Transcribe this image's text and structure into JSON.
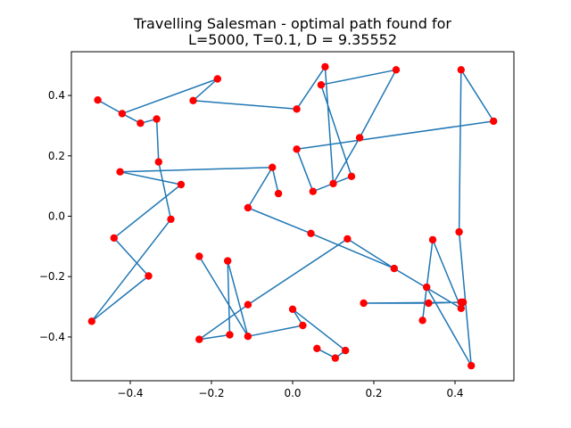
{
  "chart_data": {
    "type": "scatter",
    "title_lines": [
      "Travelling Salesman - optimal path found for",
      "L=5000, T=0.1, D = 9.35552"
    ],
    "xlim": [
      -0.545,
      0.545
    ],
    "ylim": [
      -0.545,
      0.545
    ],
    "xticks": [
      -0.4,
      -0.2,
      0.0,
      0.2,
      0.4
    ],
    "yticks": [
      -0.4,
      -0.2,
      0.0,
      0.2,
      0.4
    ],
    "xtick_labels": [
      "−0.4",
      "−0.2",
      "0.0",
      "0.2",
      "0.4"
    ],
    "ytick_labels": [
      "−0.4",
      "−0.2",
      "0.0",
      "0.2",
      "0.4"
    ],
    "grid": false,
    "path_color": "#1f77b4",
    "point_color": "#ff0000",
    "path": [
      [
        -0.48,
        0.385
      ],
      [
        -0.42,
        0.34
      ],
      [
        -0.185,
        0.455
      ],
      [
        -0.245,
        0.383
      ],
      [
        0.01,
        0.355
      ],
      [
        0.08,
        0.495
      ],
      [
        0.1,
        0.108
      ],
      [
        0.165,
        0.26
      ],
      [
        0.255,
        0.485
      ],
      [
        0.07,
        0.435
      ],
      [
        0.145,
        0.132
      ],
      [
        0.05,
        0.082
      ],
      [
        0.01,
        0.222
      ],
      [
        0.495,
        0.315
      ],
      [
        0.415,
        0.485
      ],
      [
        0.41,
        -0.052
      ],
      [
        0.44,
        -0.495
      ],
      [
        0.33,
        -0.235
      ],
      [
        0.32,
        -0.345
      ],
      [
        0.345,
        -0.078
      ],
      [
        0.415,
        -0.305
      ],
      [
        0.42,
        -0.285
      ],
      [
        0.175,
        -0.288
      ],
      [
        0.335,
        -0.288
      ],
      [
        0.415,
        -0.285
      ],
      [
        0.415,
        -0.305
      ],
      [
        0.25,
        -0.173
      ],
      [
        0.045,
        -0.057
      ],
      [
        -0.11,
        0.028
      ],
      [
        -0.05,
        0.162
      ],
      [
        -0.035,
        0.075
      ],
      [
        -0.05,
        0.162
      ],
      [
        -0.425,
        0.147
      ],
      [
        -0.275,
        0.105
      ],
      [
        -0.44,
        -0.072
      ],
      [
        -0.355,
        -0.198
      ],
      [
        -0.495,
        -0.348
      ],
      [
        -0.3,
        -0.01
      ],
      [
        -0.33,
        0.18
      ],
      [
        -0.335,
        0.322
      ],
      [
        -0.375,
        0.308
      ],
      [
        -0.42,
        0.34
      ]
    ],
    "path2": [
      [
        -0.23,
        -0.133
      ],
      [
        -0.11,
        -0.398
      ],
      [
        -0.16,
        -0.148
      ],
      [
        -0.155,
        -0.393
      ],
      [
        -0.23,
        -0.408
      ],
      [
        -0.11,
        -0.293
      ],
      [
        0.135,
        -0.075
      ],
      [
        0.25,
        -0.173
      ]
    ],
    "path3": [
      [
        -0.11,
        -0.398
      ],
      [
        0.025,
        -0.362
      ],
      [
        0.0,
        -0.308
      ],
      [
        0.13,
        -0.445
      ],
      [
        0.105,
        -0.47
      ],
      [
        0.06,
        -0.438
      ]
    ]
  }
}
